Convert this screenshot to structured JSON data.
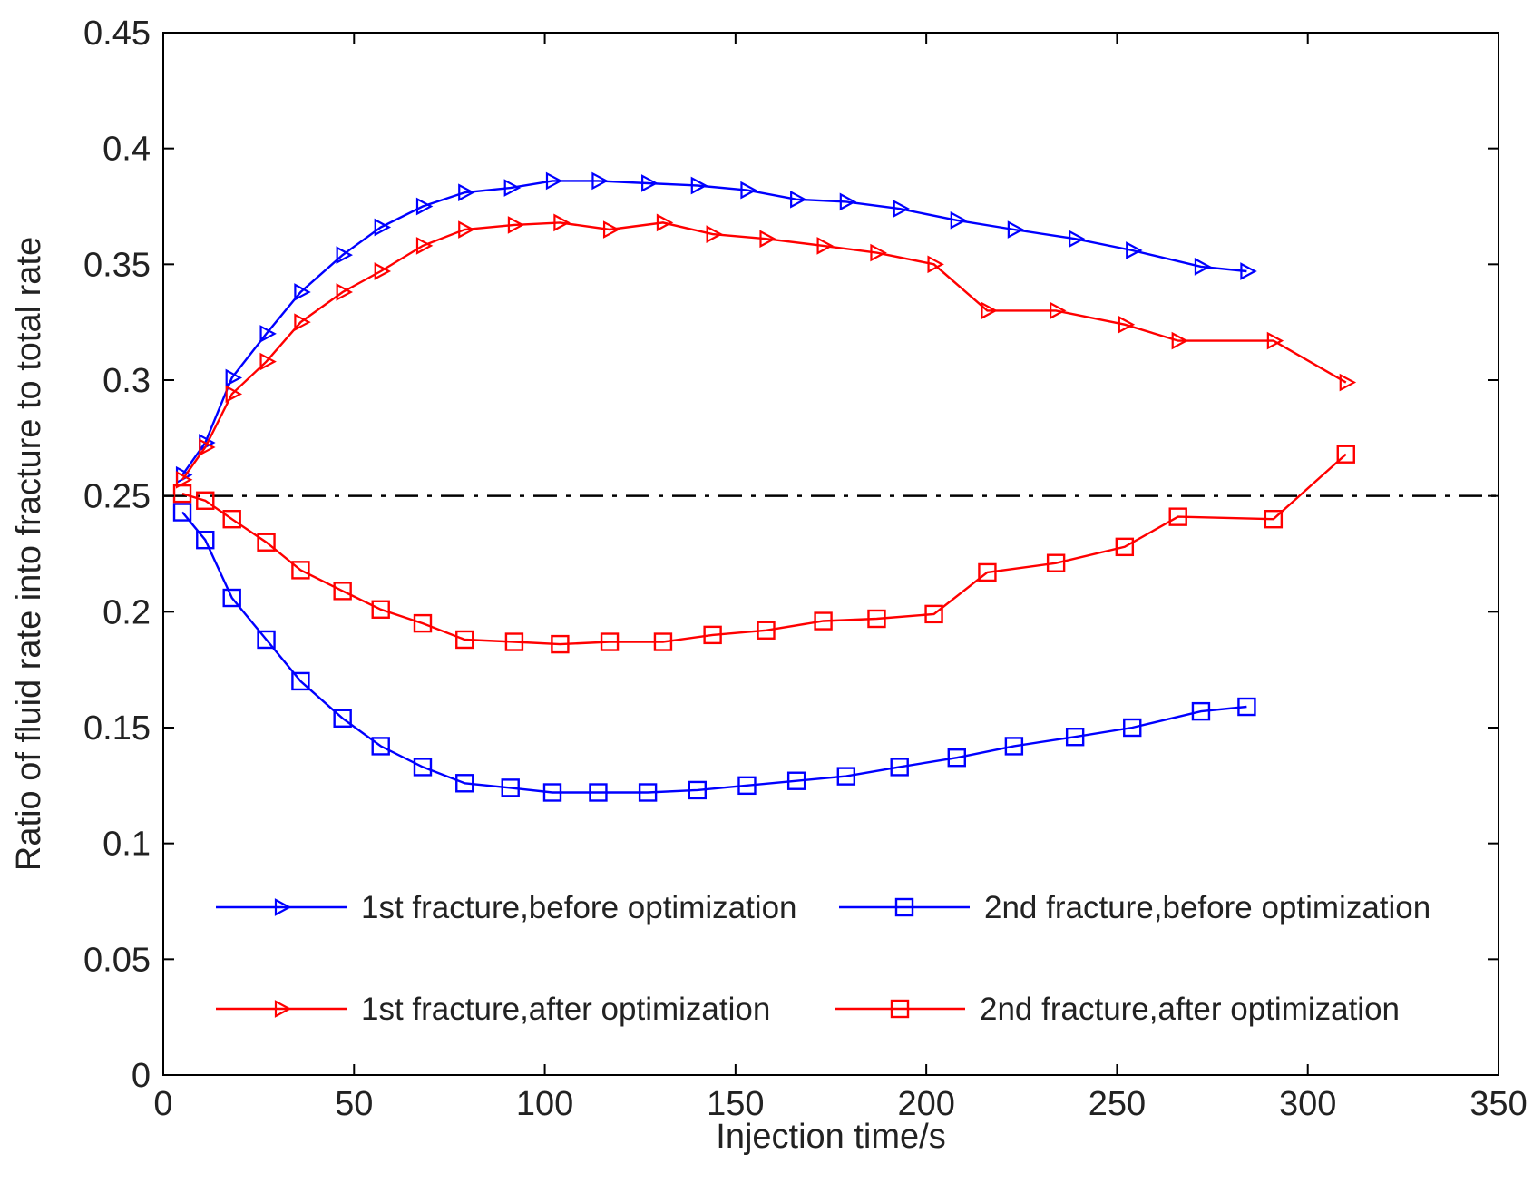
{
  "chart_data": {
    "type": "line",
    "title": "",
    "xlabel": "Injection time/s",
    "ylabel": "Ratio of fluid rate into fracture to total rate",
    "xlim": [
      0,
      350
    ],
    "ylim": [
      0,
      0.45
    ],
    "x_ticks": [
      0,
      50,
      100,
      150,
      200,
      250,
      300,
      350
    ],
    "x_tick_labels": [
      "0",
      "50",
      "100",
      "150",
      "200",
      "250",
      "300",
      "350"
    ],
    "y_ticks": [
      0,
      0.05,
      0.1,
      0.15,
      0.2,
      0.25,
      0.3,
      0.35,
      0.4,
      0.45
    ],
    "y_tick_labels": [
      "0",
      "0.05",
      "0.1",
      "0.15",
      "0.2",
      "0.25",
      "0.3",
      "0.35",
      "0.4",
      "0.45"
    ],
    "grid": false,
    "reference_line": {
      "y": 0.25,
      "style": "dash-dot",
      "color": "#000000"
    },
    "series": [
      {
        "name": "1st fracture,before optimization",
        "color": "#0000ff",
        "marker": "triangle-right",
        "x": [
          5,
          11,
          18,
          27,
          36,
          47,
          57,
          68,
          79,
          91,
          102,
          114,
          127,
          140,
          153,
          166,
          179,
          193,
          208,
          223,
          239,
          254,
          272,
          284
        ],
        "y": [
          0.259,
          0.273,
          0.301,
          0.32,
          0.338,
          0.354,
          0.366,
          0.375,
          0.381,
          0.383,
          0.386,
          0.386,
          0.385,
          0.384,
          0.382,
          0.378,
          0.377,
          0.374,
          0.369,
          0.365,
          0.361,
          0.356,
          0.349,
          0.347
        ]
      },
      {
        "name": "2nd fracture,before optimization",
        "color": "#0000ff",
        "marker": "square",
        "x": [
          5,
          11,
          18,
          27,
          36,
          47,
          57,
          68,
          79,
          91,
          102,
          114,
          127,
          140,
          153,
          166,
          179,
          193,
          208,
          223,
          239,
          254,
          272,
          284
        ],
        "y": [
          0.243,
          0.231,
          0.206,
          0.188,
          0.17,
          0.154,
          0.142,
          0.133,
          0.126,
          0.124,
          0.122,
          0.122,
          0.122,
          0.123,
          0.125,
          0.127,
          0.129,
          0.133,
          0.137,
          0.142,
          0.146,
          0.15,
          0.157,
          0.159
        ]
      },
      {
        "name": "1st fracture,after optimization",
        "color": "#ff0000",
        "marker": "triangle-right",
        "x": [
          5,
          11,
          18,
          27,
          36,
          47,
          57,
          68,
          79,
          92,
          104,
          117,
          131,
          144,
          158,
          173,
          187,
          202,
          216,
          234,
          252,
          266,
          291,
          310
        ],
        "y": [
          0.257,
          0.271,
          0.294,
          0.308,
          0.325,
          0.338,
          0.347,
          0.358,
          0.365,
          0.367,
          0.368,
          0.365,
          0.368,
          0.363,
          0.361,
          0.358,
          0.355,
          0.35,
          0.33,
          0.33,
          0.324,
          0.317,
          0.317,
          0.299
        ]
      },
      {
        "name": "2nd fracture,after optimization",
        "color": "#ff0000",
        "marker": "square",
        "x": [
          5,
          11,
          18,
          27,
          36,
          47,
          57,
          68,
          79,
          92,
          104,
          117,
          131,
          144,
          158,
          173,
          187,
          202,
          216,
          234,
          252,
          266,
          291,
          310
        ],
        "y": [
          0.251,
          0.248,
          0.24,
          0.23,
          0.218,
          0.209,
          0.201,
          0.195,
          0.188,
          0.187,
          0.186,
          0.187,
          0.187,
          0.19,
          0.192,
          0.196,
          0.197,
          0.199,
          0.217,
          0.221,
          0.228,
          0.241,
          0.24,
          0.268
        ]
      }
    ],
    "legend": {
      "placement": "lower-middle",
      "entries": [
        "1st fracture,before optimization",
        "2nd fracture,before optimization",
        "1st fracture,after optimization",
        "2nd fracture,after optimization"
      ]
    }
  }
}
